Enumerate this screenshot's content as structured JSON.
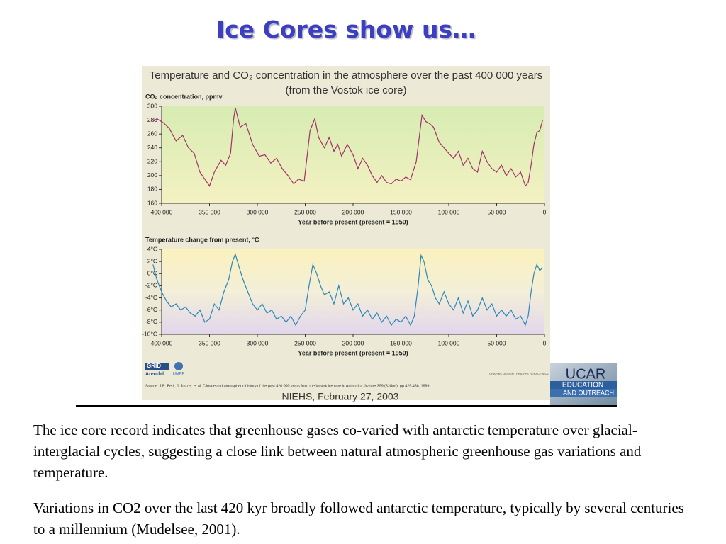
{
  "slide": {
    "title": "Ice Cores show us…",
    "paragraphs": [
      "The ice core record indicates that greenhouse gases co-varied with antarctic temperature over glacial-interglacial cycles, suggesting a close link between natural atmospheric greenhouse gas variations and temperature.",
      "Variations in CO2 over the last 420 kyr broadly followed antarctic temperature, typically by several centuries to a millennium (Mudelsee, 2001)."
    ]
  },
  "figure": {
    "title": "Temperature and CO₂ concentration in the atmosphere over the past 400 000 years",
    "subtitle": "(from the Vostok ice core)",
    "source": "Source: J.R. Petit, J. Jouzel, et al. Climate and atmospheric history of the past 420 000 years from the Vostok ice core in Antarctica, Nature 399 (3JUne), pp 429-436, 1999.",
    "credit": "GRAPHIC DESIGN : PHILIPPE REKACEWICZ",
    "caption": "NIEHS, February 27, 2003",
    "logos": [
      "GRID",
      "Arendal",
      "UNEP",
      "UCAR",
      "EDUCATION",
      "AND OUTREACH"
    ]
  },
  "chart_data": [
    {
      "type": "line",
      "ylabel": "CO₂ concentration, ppmv",
      "xlabel": "Year before present (present = 1950)",
      "xlim": [
        400000,
        0
      ],
      "ylim": [
        160,
        300
      ],
      "xticks": [
        {
          "value": 400000,
          "label": "400 000"
        },
        {
          "value": 350000,
          "label": "350 000"
        },
        {
          "value": 300000,
          "label": "300 000"
        },
        {
          "value": 250000,
          "label": "250 000"
        },
        {
          "value": 200000,
          "label": "200 000"
        },
        {
          "value": 150000,
          "label": "150 000"
        },
        {
          "value": 100000,
          "label": "100 000"
        },
        {
          "value": 50000,
          "label": "50 000"
        },
        0
      ],
      "yticks": [
        160,
        180,
        200,
        220,
        240,
        260,
        280,
        300
      ],
      "x": [
        409000,
        405000,
        398000,
        392000,
        385000,
        378000,
        372000,
        366000,
        360000,
        355000,
        350000,
        345000,
        338000,
        333000,
        328000,
        325000,
        323000,
        318000,
        312000,
        305000,
        298000,
        292000,
        286000,
        280000,
        274000,
        268000,
        262000,
        257000,
        251000,
        245000,
        240000,
        236000,
        230000,
        225000,
        220000,
        216000,
        212000,
        206000,
        200000,
        195000,
        190000,
        185000,
        180000,
        175000,
        170000,
        165000,
        160000,
        155000,
        150000,
        145000,
        140000,
        134000,
        130000,
        128000,
        124000,
        120000,
        116000,
        110000,
        105000,
        100000,
        95000,
        90000,
        85000,
        80000,
        75000,
        70000,
        65000,
        60000,
        55000,
        50000,
        45000,
        40000,
        35000,
        30000,
        25000,
        20000,
        17000,
        14000,
        11000,
        8000,
        5000,
        2000
      ],
      "series": [
        {
          "color": "#a3306c",
          "values": [
            278,
            282,
            276,
            268,
            250,
            258,
            240,
            232,
            205,
            195,
            185,
            205,
            222,
            215,
            232,
            280,
            298,
            270,
            275,
            245,
            228,
            230,
            218,
            225,
            210,
            200,
            188,
            195,
            192,
            265,
            282,
            255,
            240,
            255,
            235,
            245,
            228,
            245,
            230,
            210,
            225,
            215,
            200,
            190,
            200,
            190,
            188,
            195,
            192,
            198,
            194,
            220,
            265,
            287,
            278,
            275,
            270,
            248,
            240,
            232,
            225,
            235,
            215,
            225,
            210,
            205,
            235,
            220,
            210,
            205,
            215,
            200,
            210,
            198,
            205,
            185,
            190,
            215,
            245,
            262,
            265,
            280
          ]
        }
      ]
    },
    {
      "type": "line",
      "ylabel": "Temperature change from present, °C",
      "xlabel": "Year before present (present = 1950)",
      "xlim": [
        400000,
        0
      ],
      "ylim": [
        -10,
        4
      ],
      "xticks": [
        {
          "value": 400000,
          "label": "400 000"
        },
        {
          "value": 350000,
          "label": "350 000"
        },
        {
          "value": 300000,
          "label": "300 000"
        },
        {
          "value": 250000,
          "label": "250 000"
        },
        {
          "value": 200000,
          "label": "200 000"
        },
        {
          "value": 150000,
          "label": "150 000"
        },
        {
          "value": 100000,
          "label": "100 000"
        },
        {
          "value": 50000,
          "label": "50 000"
        },
        0
      ],
      "yticks": [
        {
          "value": -10,
          "label": "-10°C"
        },
        {
          "value": -8,
          "label": "-8°C"
        },
        {
          "value": -6,
          "label": "-6°C"
        },
        {
          "value": -4,
          "label": "-4°C"
        },
        {
          "value": -2,
          "label": "-2°C"
        },
        {
          "value": 0,
          "label": "0°C"
        },
        {
          "value": 2,
          "label": "2°C"
        },
        {
          "value": 4,
          "label": "4°C"
        }
      ],
      "x": [
        409000,
        405000,
        400000,
        395000,
        390000,
        385000,
        380000,
        375000,
        370000,
        365000,
        360000,
        355000,
        350000,
        345000,
        340000,
        335000,
        330000,
        326000,
        323000,
        319000,
        315000,
        310000,
        305000,
        300000,
        295000,
        290000,
        285000,
        280000,
        275000,
        270000,
        265000,
        260000,
        255000,
        250000,
        246000,
        242000,
        238000,
        234000,
        230000,
        225000,
        220000,
        215000,
        210000,
        205000,
        200000,
        195000,
        190000,
        185000,
        180000,
        175000,
        170000,
        165000,
        160000,
        155000,
        150000,
        145000,
        140000,
        136000,
        132000,
        129000,
        126000,
        122000,
        118000,
        114000,
        110000,
        105000,
        100000,
        95000,
        90000,
        85000,
        80000,
        75000,
        70000,
        65000,
        60000,
        55000,
        50000,
        45000,
        40000,
        35000,
        30000,
        25000,
        20000,
        17000,
        14000,
        11000,
        8000,
        5000,
        2000
      ],
      "series": [
        {
          "color": "#2b87b9",
          "values": [
            1.5,
            -1,
            -3,
            -4.5,
            -5.5,
            -5,
            -6,
            -5.5,
            -6.5,
            -7,
            -6,
            -8,
            -7.5,
            -5,
            -6,
            -3,
            -1,
            2,
            3.2,
            1,
            -1,
            -3,
            -5,
            -6,
            -5,
            -6.5,
            -6,
            -7.5,
            -7,
            -8,
            -7,
            -8.5,
            -7,
            -6,
            -2,
            1.5,
            0,
            -2,
            -3.5,
            -3,
            -5,
            -2,
            -5,
            -4,
            -6,
            -5,
            -7,
            -6,
            -7.5,
            -6.5,
            -8,
            -7,
            -8.5,
            -7.5,
            -8,
            -7,
            -8.5,
            -7,
            -2,
            3,
            2,
            -1,
            -2,
            -4,
            -5,
            -3,
            -5,
            -6,
            -4,
            -6.5,
            -4.5,
            -7,
            -6,
            -4,
            -6,
            -5,
            -7,
            -6,
            -7,
            -6,
            -7.5,
            -7,
            -8.5,
            -7,
            -3,
            0,
            1.5,
            0.5,
            1
          ]
        }
      ]
    }
  ]
}
